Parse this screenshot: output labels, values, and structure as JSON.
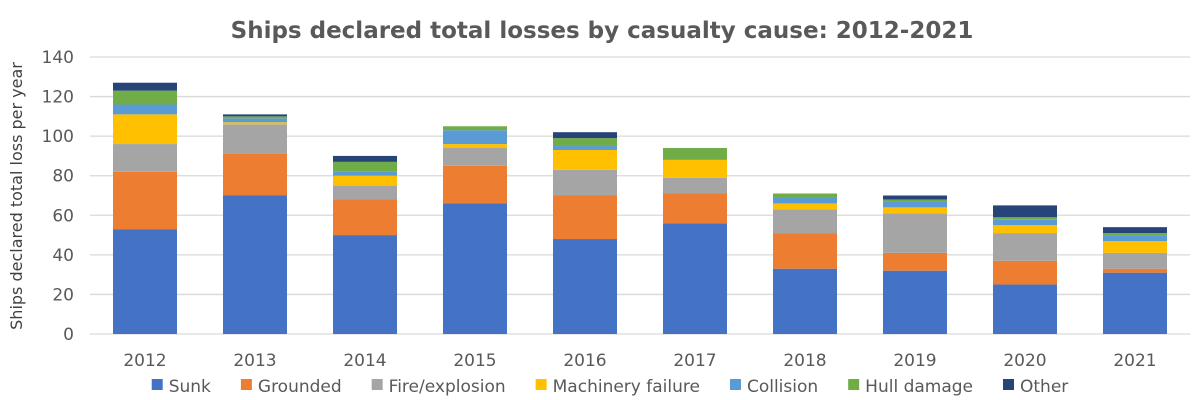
{
  "chart_data": {
    "type": "bar",
    "stacked": true,
    "title": "Ships declared total losses by casualty cause: 2012-2021",
    "xlabel": "",
    "ylabel": "Ships declared total loss per year",
    "ylim": [
      0,
      140
    ],
    "yticks": [
      "0",
      "20",
      "40",
      "60",
      "80",
      "100",
      "120",
      "140"
    ],
    "ytick_values": [
      0,
      20,
      40,
      60,
      80,
      100,
      120,
      140
    ],
    "grid": true,
    "legend_position": "bottom",
    "categories": [
      "2012",
      "2013",
      "2014",
      "2015",
      "2016",
      "2017",
      "2018",
      "2019",
      "2020",
      "2021"
    ],
    "series": [
      {
        "name": "Sunk",
        "color": "#4472c4",
        "values": [
          53,
          70,
          50,
          66,
          48,
          56,
          33,
          32,
          25,
          31
        ]
      },
      {
        "name": "Grounded",
        "color": "#ed7d31",
        "values": [
          29,
          21,
          18,
          19,
          22,
          15,
          18,
          9,
          12,
          2
        ]
      },
      {
        "name": "Fire/explosion",
        "color": "#a5a5a5",
        "values": [
          14,
          15,
          7,
          9,
          13,
          8,
          12,
          20,
          14,
          8
        ]
      },
      {
        "name": "Machinery failure",
        "color": "#ffc000",
        "values": [
          15,
          1,
          5,
          2,
          10,
          9,
          3,
          3,
          4,
          6
        ]
      },
      {
        "name": "Collision",
        "color": "#5b9bd5",
        "values": [
          5,
          2,
          2,
          7,
          2,
          0,
          3,
          3,
          3,
          3
        ]
      },
      {
        "name": "Hull damage",
        "color": "#70ad47",
        "values": [
          7,
          1,
          5,
          2,
          4,
          6,
          2,
          1,
          1,
          1
        ]
      },
      {
        "name": "Other",
        "color": "#264478",
        "values": [
          4,
          1,
          3,
          0,
          3,
          0,
          0,
          2,
          6,
          3
        ]
      }
    ]
  }
}
